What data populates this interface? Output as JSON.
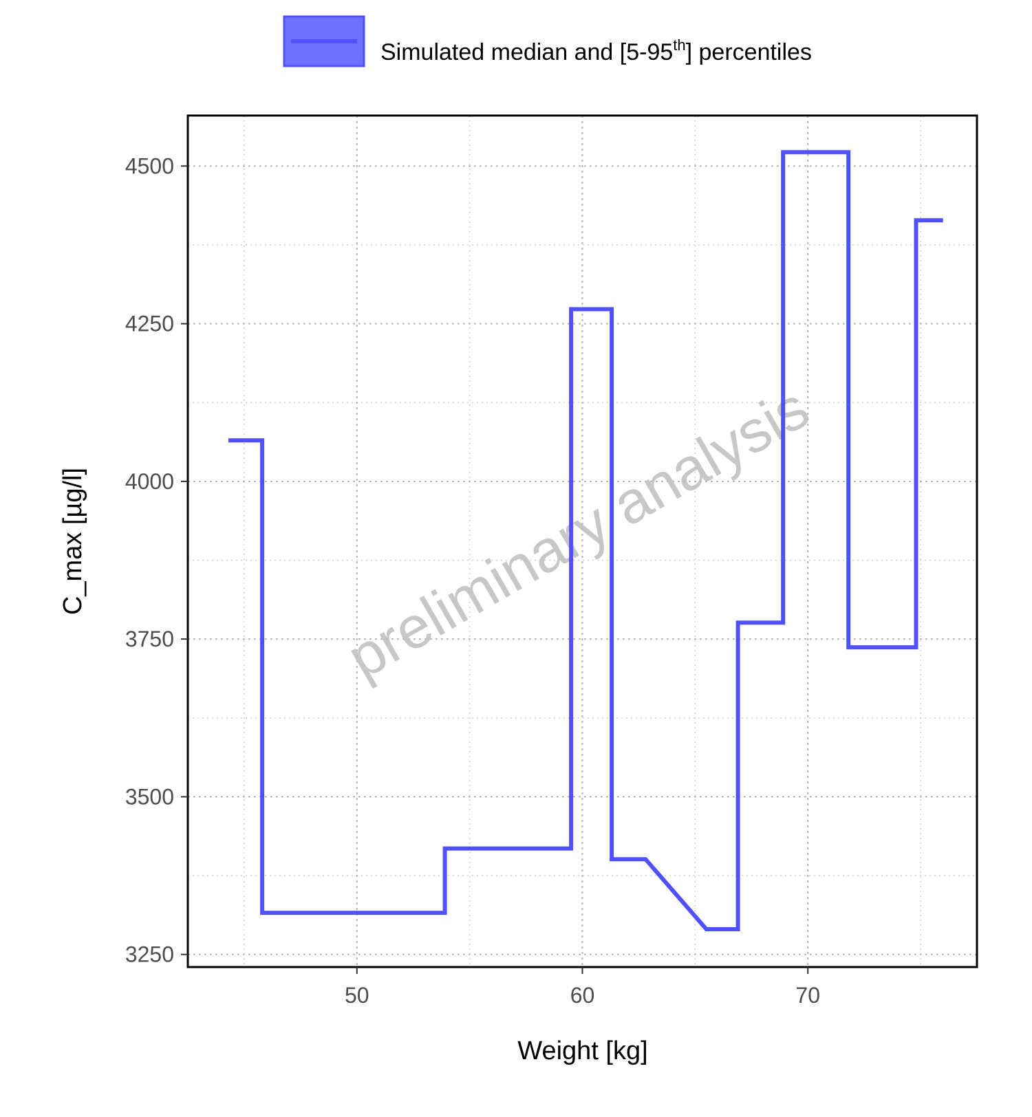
{
  "chart_data": {
    "type": "line",
    "step": true,
    "title": "",
    "xlabel": "Weight [kg]",
    "ylabel": "C_max [µg/l]",
    "xlim": [
      42.5,
      77.5
    ],
    "ylim": [
      3230,
      4580
    ],
    "x_ticks": [
      50,
      60,
      70
    ],
    "y_ticks": [
      3250,
      3500,
      3750,
      4000,
      4250,
      4500
    ],
    "grid": true,
    "legend_position": "top",
    "watermark": "preliminary analysis",
    "legend": {
      "label_main": "Simulated median and [5-95",
      "label_sup": "th",
      "label_end": "] percentiles"
    },
    "series": [
      {
        "color": "#5050ff",
        "points": [
          [
            44.3,
            4065
          ],
          [
            45.8,
            4065
          ],
          [
            45.8,
            3316
          ],
          [
            53.9,
            3316
          ],
          [
            53.9,
            3418
          ],
          [
            59.5,
            3418
          ],
          [
            59.5,
            4273
          ],
          [
            61.3,
            4273
          ],
          [
            61.3,
            3401
          ],
          [
            62.8,
            3401
          ],
          [
            65.5,
            3290
          ],
          [
            66.9,
            3290
          ],
          [
            66.9,
            3776
          ],
          [
            68.9,
            3776
          ],
          [
            68.9,
            4522
          ],
          [
            71.8,
            4522
          ],
          [
            71.8,
            3737
          ],
          [
            74.8,
            3737
          ],
          [
            74.8,
            4414
          ],
          [
            76.0,
            4414
          ]
        ]
      }
    ]
  }
}
